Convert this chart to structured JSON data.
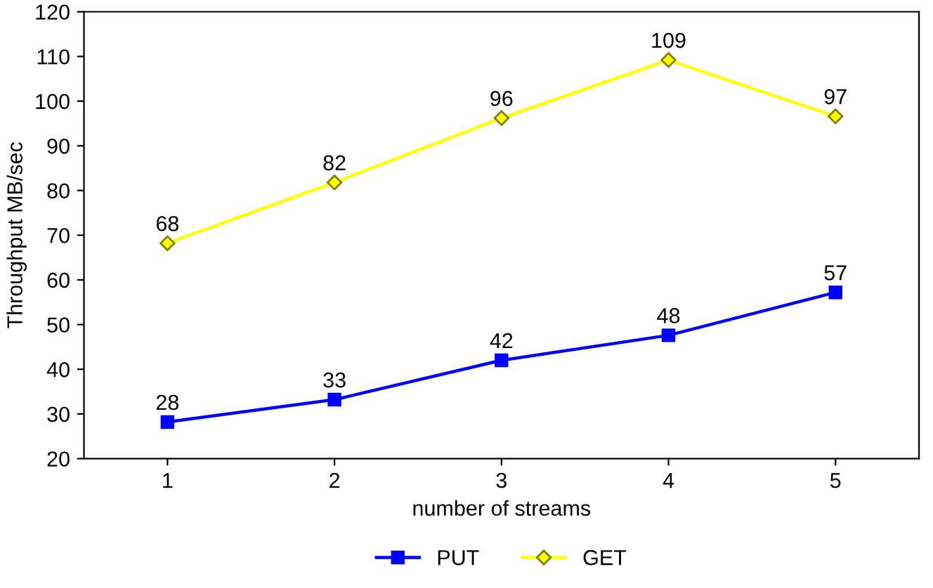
{
  "chart_data": {
    "type": "line",
    "xlabel": "number of streams",
    "ylabel": "Throughput MB/sec",
    "categories": [
      "1",
      "2",
      "3",
      "4",
      "5"
    ],
    "series": [
      {
        "name": "PUT",
        "color": "#0000ff",
        "marker": "square",
        "values": [
          28.2,
          33.2,
          42.0,
          47.6,
          57.2
        ],
        "value_labels": [
          "28",
          "33",
          "42",
          "48",
          "57"
        ]
      },
      {
        "name": "GET",
        "color": "#ffff00",
        "marker": "diamond",
        "values": [
          68.2,
          81.8,
          96.2,
          109.2,
          96.6
        ],
        "value_labels": [
          "68",
          "82",
          "96",
          "109",
          "97"
        ]
      }
    ],
    "ylim": [
      20,
      120
    ],
    "yticks": [
      20,
      30,
      40,
      50,
      60,
      70,
      80,
      90,
      100,
      110,
      120
    ],
    "grid": false,
    "legend": "bottom",
    "line_style": "solid"
  }
}
